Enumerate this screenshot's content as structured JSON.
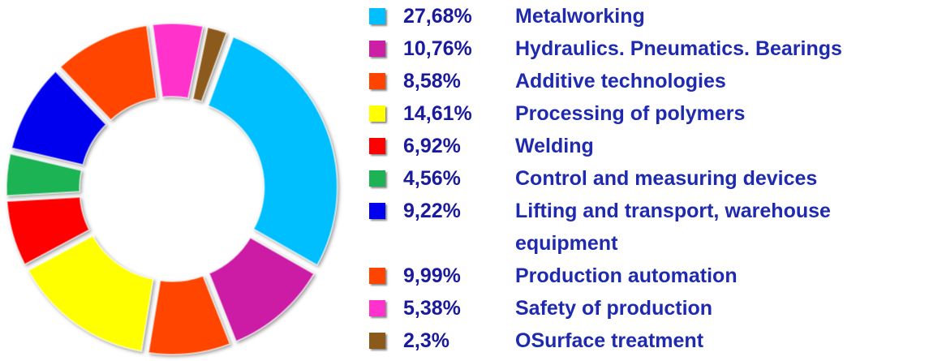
{
  "chart_data": {
    "type": "donut",
    "categories": [
      "Metalworking",
      "Hydraulics. Pneumatics. Bearings",
      "Additive technologies",
      "Processing of polymers",
      "Welding",
      "Control and measuring devices",
      "Lifting and transport, warehouse equipment",
      "Production automation",
      "Safety of production",
      "OSurface treatment"
    ],
    "values": [
      27.68,
      10.76,
      8.58,
      14.61,
      6.92,
      4.56,
      9.22,
      9.99,
      5.38,
      2.3
    ],
    "value_labels": [
      "27,68%",
      "10,76%",
      "8,58%",
      "14,61%",
      "6,92%",
      "4,56%",
      "9,22%",
      "9,99%",
      "5,38%",
      "2,3%"
    ],
    "colors": [
      "#00bfff",
      "#cc1fa6",
      "#ff4400",
      "#ffff00",
      "#ff0000",
      "#1db354",
      "#0000ee",
      "#ff4400",
      "#ff33cc",
      "#8b5a1b"
    ],
    "legend": "right"
  }
}
